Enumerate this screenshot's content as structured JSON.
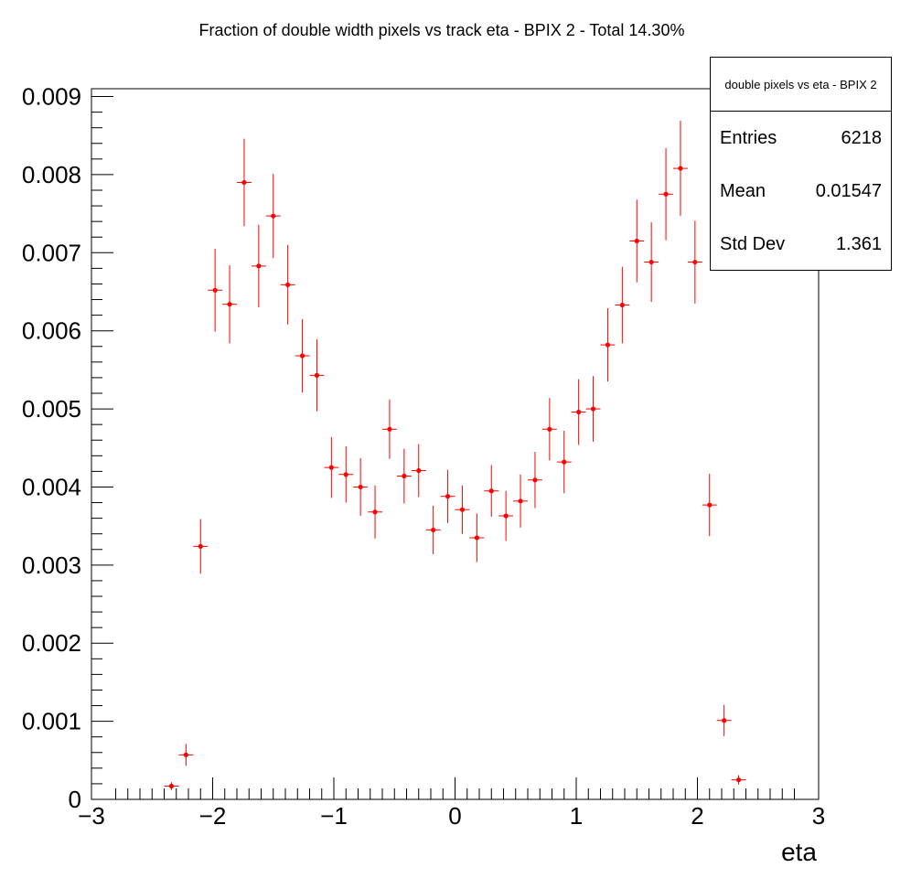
{
  "chart_data": {
    "type": "scatter",
    "title": "Fraction of double width pixels vs track eta - BPIX 2 - Total 14.30%",
    "xlabel": "eta",
    "ylabel": "",
    "xlim": [
      -3,
      3
    ],
    "ylim": [
      0,
      0.0091
    ],
    "x_ticks": [
      -3,
      -2,
      -1,
      0,
      1,
      2,
      3
    ],
    "x_tick_labels": [
      "−3",
      "−2",
      "−1",
      "0",
      "1",
      "2",
      "3"
    ],
    "y_ticks": [
      0,
      0.001,
      0.002,
      0.003,
      0.004,
      0.005,
      0.006,
      0.007,
      0.008,
      0.009
    ],
    "y_tick_labels": [
      "0",
      "0.001",
      "0.002",
      "0.003",
      "0.004",
      "0.005",
      "0.006",
      "0.007",
      "0.008",
      "0.009"
    ],
    "bin_half_width": 0.06,
    "grid": false,
    "marker_color": "#ff0000",
    "series": [
      {
        "points": [
          {
            "x": -2.34,
            "y": 0.00017,
            "err": 5e-05
          },
          {
            "x": -2.22,
            "y": 0.00057,
            "err": 0.00014
          },
          {
            "x": -2.1,
            "y": 0.00324,
            "err": 0.00035
          },
          {
            "x": -1.98,
            "y": 0.00652,
            "err": 0.00053
          },
          {
            "x": -1.86,
            "y": 0.00634,
            "err": 0.0005
          },
          {
            "x": -1.74,
            "y": 0.0079,
            "err": 0.00056
          },
          {
            "x": -1.62,
            "y": 0.00683,
            "err": 0.00053
          },
          {
            "x": -1.5,
            "y": 0.00747,
            "err": 0.00054
          },
          {
            "x": -1.38,
            "y": 0.00659,
            "err": 0.00051
          },
          {
            "x": -1.26,
            "y": 0.00568,
            "err": 0.00047
          },
          {
            "x": -1.14,
            "y": 0.00543,
            "err": 0.00046
          },
          {
            "x": -1.02,
            "y": 0.00425,
            "err": 0.00039
          },
          {
            "x": -0.9,
            "y": 0.00416,
            "err": 0.00036
          },
          {
            "x": -0.78,
            "y": 0.004,
            "err": 0.00037
          },
          {
            "x": -0.66,
            "y": 0.00368,
            "err": 0.00034
          },
          {
            "x": -0.54,
            "y": 0.00474,
            "err": 0.00038
          },
          {
            "x": -0.42,
            "y": 0.00414,
            "err": 0.00035
          },
          {
            "x": -0.3,
            "y": 0.00421,
            "err": 0.00034
          },
          {
            "x": -0.18,
            "y": 0.00345,
            "err": 0.00031
          },
          {
            "x": -0.06,
            "y": 0.00388,
            "err": 0.00034
          },
          {
            "x": 0.06,
            "y": 0.00371,
            "err": 0.00031
          },
          {
            "x": 0.18,
            "y": 0.00335,
            "err": 0.00031
          },
          {
            "x": 0.3,
            "y": 0.00395,
            "err": 0.00033
          },
          {
            "x": 0.42,
            "y": 0.00363,
            "err": 0.00032
          },
          {
            "x": 0.54,
            "y": 0.00382,
            "err": 0.00034
          },
          {
            "x": 0.66,
            "y": 0.00409,
            "err": 0.00036
          },
          {
            "x": 0.78,
            "y": 0.00474,
            "err": 0.0004
          },
          {
            "x": 0.9,
            "y": 0.00432,
            "err": 0.0004
          },
          {
            "x": 1.02,
            "y": 0.00496,
            "err": 0.00042
          },
          {
            "x": 1.14,
            "y": 0.005,
            "err": 0.00042
          },
          {
            "x": 1.26,
            "y": 0.00582,
            "err": 0.00047
          },
          {
            "x": 1.38,
            "y": 0.00633,
            "err": 0.00049
          },
          {
            "x": 1.5,
            "y": 0.00715,
            "err": 0.00053
          },
          {
            "x": 1.62,
            "y": 0.00688,
            "err": 0.00051
          },
          {
            "x": 1.74,
            "y": 0.00775,
            "err": 0.00059
          },
          {
            "x": 1.86,
            "y": 0.00808,
            "err": 0.00061
          },
          {
            "x": 1.98,
            "y": 0.00688,
            "err": 0.00053
          },
          {
            "x": 2.1,
            "y": 0.00377,
            "err": 0.0004
          },
          {
            "x": 2.22,
            "y": 0.00101,
            "err": 0.0002
          },
          {
            "x": 2.34,
            "y": 0.00025,
            "err": 6e-05
          }
        ]
      }
    ]
  },
  "stats": {
    "title": "double pixels vs eta - BPIX 2",
    "rows": [
      {
        "label": "Entries",
        "value": "6218"
      },
      {
        "label": "Mean",
        "value": "0.01547"
      },
      {
        "label": "Std Dev",
        "value": "1.361"
      }
    ]
  }
}
